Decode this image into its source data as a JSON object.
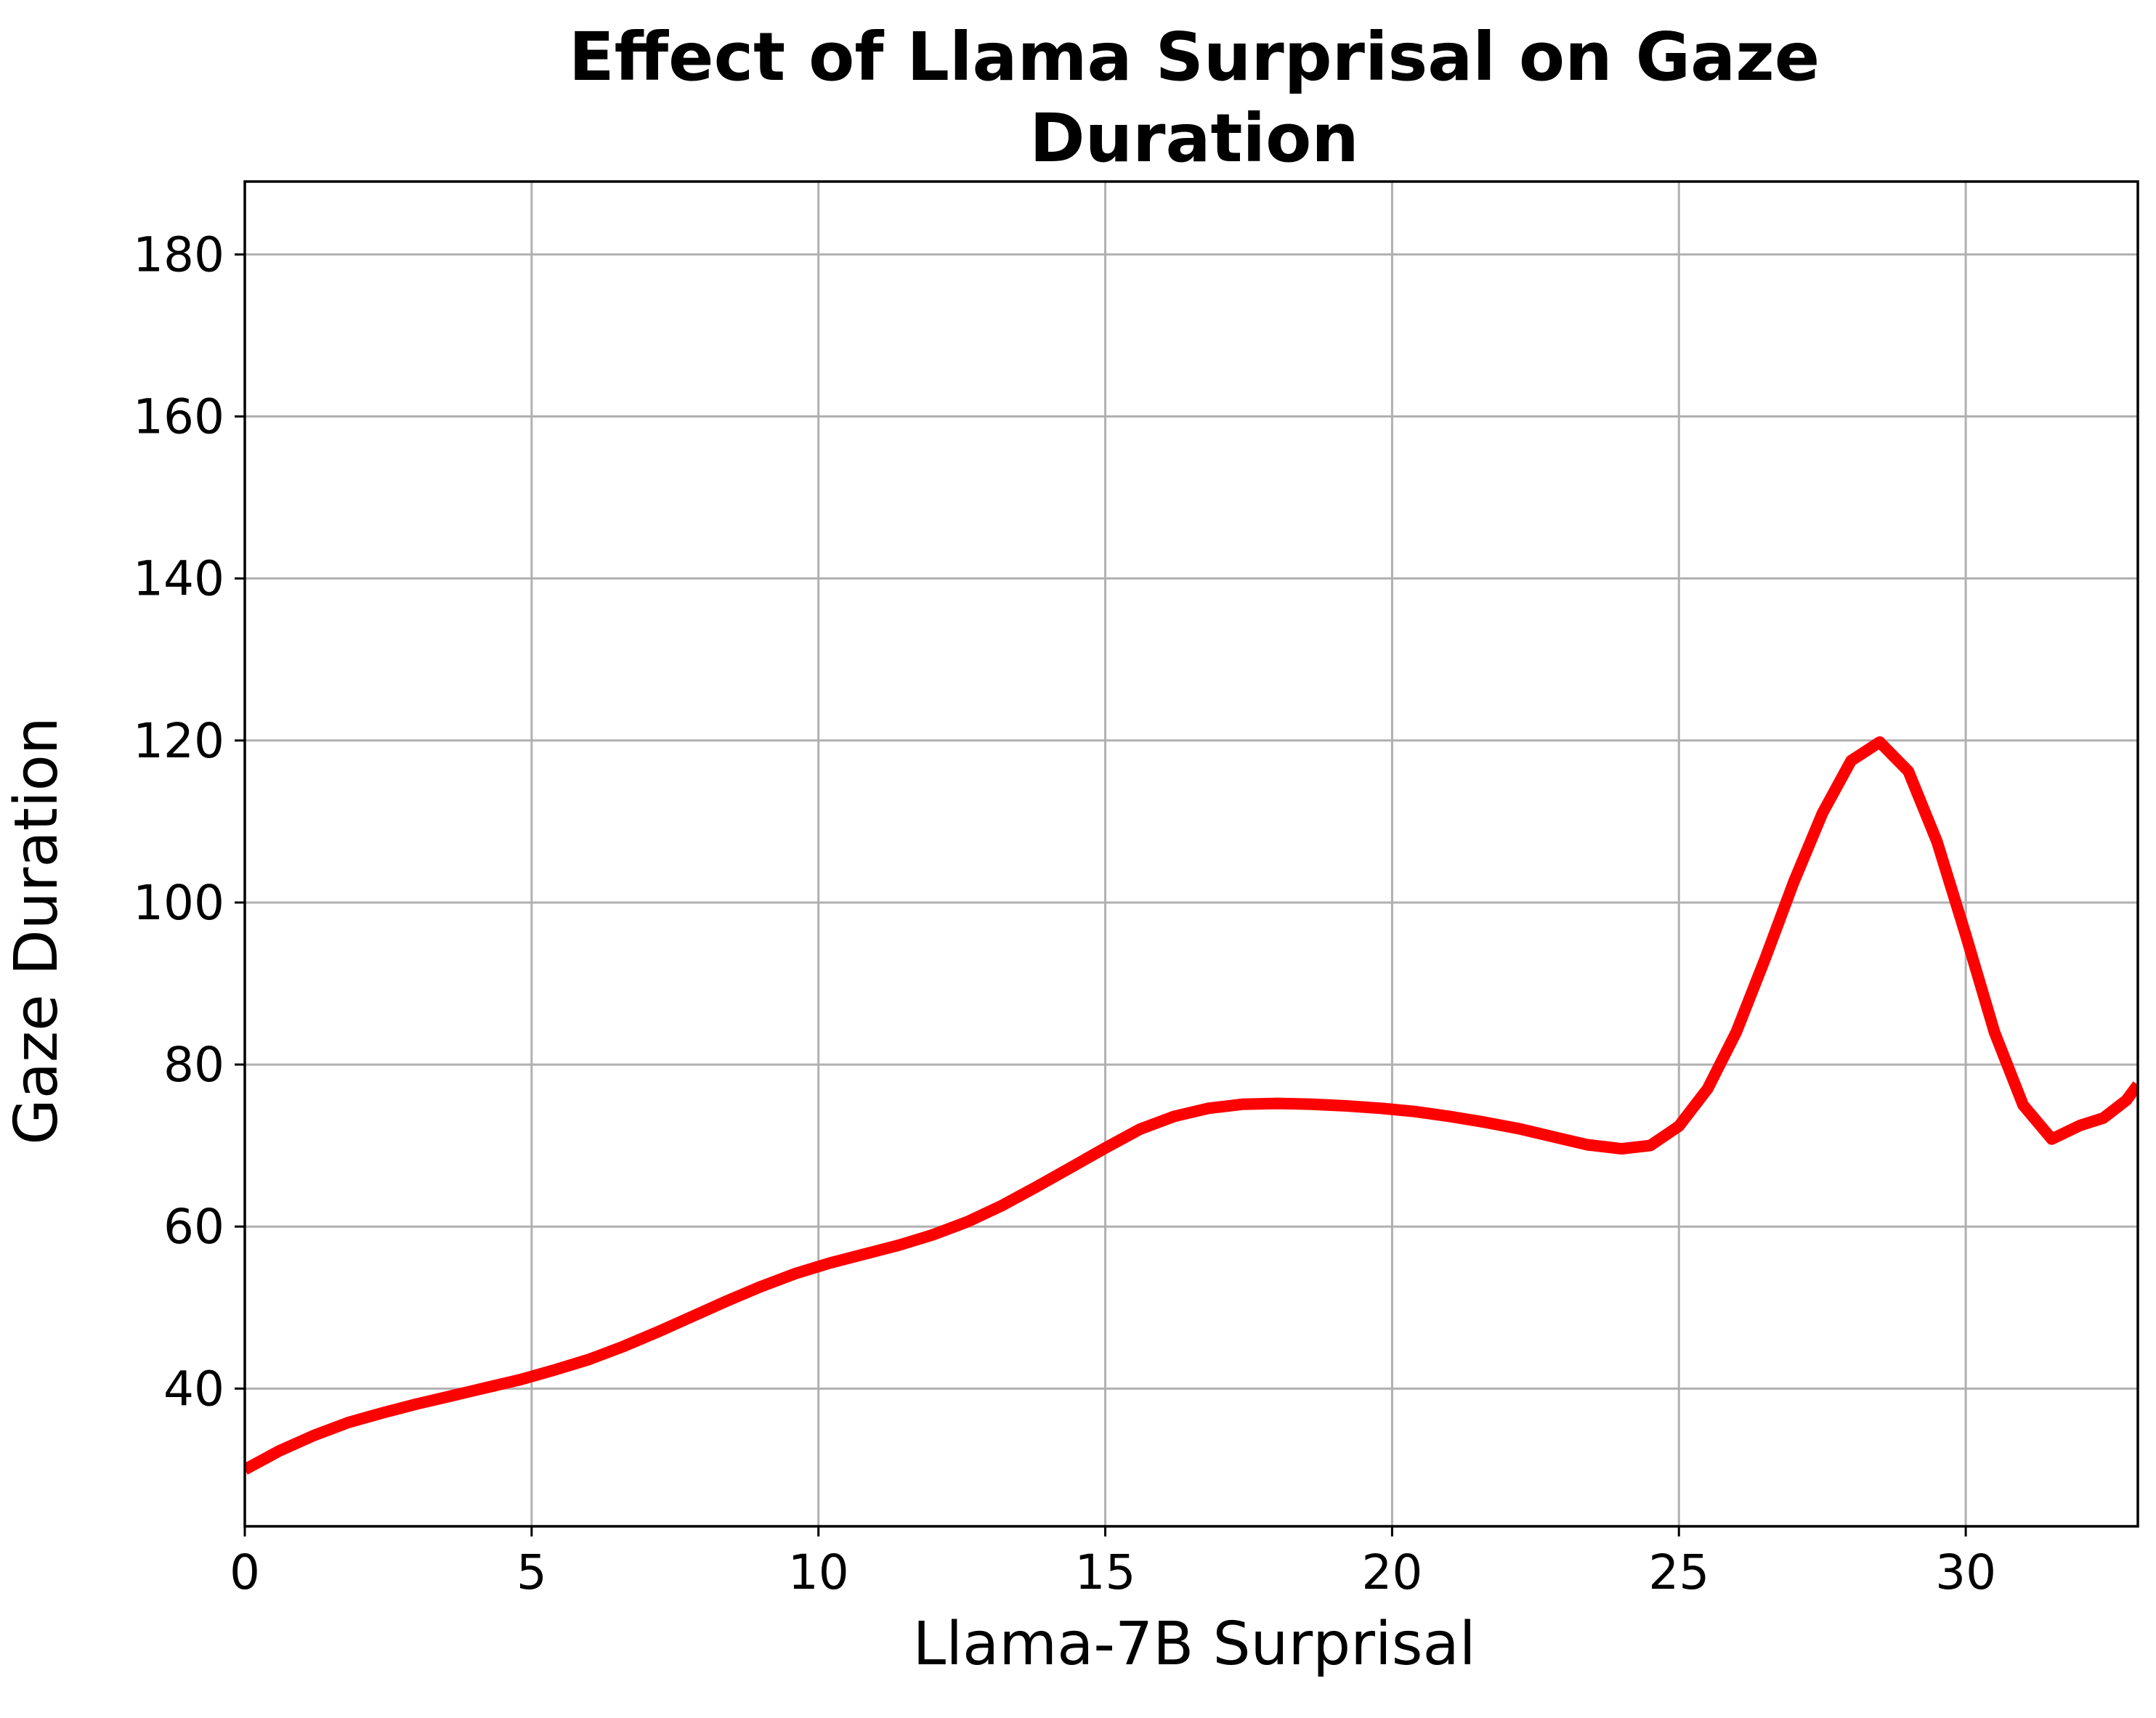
{
  "chart_data": {
    "type": "line",
    "title": "Effect of Llama Surprisal on Gaze Duration",
    "title_lines": [
      "Effect of Llama Surprisal on Gaze",
      "Duration"
    ],
    "xlabel": "Llama-7B Surprisal",
    "ylabel": "Gaze Duration",
    "xlim": [
      0,
      33
    ],
    "ylim": [
      23,
      189
    ],
    "xticks": [
      0,
      5,
      10,
      15,
      20,
      25,
      30
    ],
    "yticks": [
      40,
      60,
      80,
      100,
      120,
      140,
      160,
      180
    ],
    "grid": true,
    "line_color": "#ff0000",
    "series": [
      {
        "x": [
          0,
          0.6,
          1.2,
          1.8,
          2.4,
          3.0,
          3.6,
          4.2,
          4.8,
          5.4,
          6.0,
          6.6,
          7.2,
          7.8,
          8.4,
          9.0,
          9.6,
          10.2,
          10.8,
          11.4,
          12.0,
          12.6,
          13.2,
          13.8,
          14.4,
          15.0,
          15.6,
          16.2,
          16.8,
          17.4,
          18.0,
          18.6,
          19.2,
          19.8,
          20.4,
          21.0,
          21.6,
          22.2,
          22.8,
          23.4,
          24.0,
          24.5,
          25.0,
          25.5,
          26.0,
          26.5,
          27.0,
          27.5,
          28.0,
          28.5,
          29.0,
          29.5,
          30.0,
          30.5,
          31.0,
          31.5,
          32.0,
          32.4,
          32.8,
          33.0
        ],
        "y": [
          30.0,
          32.3,
          34.2,
          35.8,
          37.0,
          38.1,
          39.1,
          40.1,
          41.1,
          42.3,
          43.6,
          45.2,
          47.0,
          48.9,
          50.8,
          52.6,
          54.2,
          55.5,
          56.6,
          57.7,
          59.0,
          60.6,
          62.6,
          64.9,
          67.3,
          69.7,
          72.0,
          73.6,
          74.6,
          75.1,
          75.2,
          75.1,
          74.9,
          74.6,
          74.2,
          73.6,
          72.9,
          72.1,
          71.1,
          70.1,
          69.6,
          70.0,
          72.4,
          77.0,
          84.0,
          93.0,
          102.5,
          111.0,
          117.5,
          119.8,
          116.2,
          107.5,
          96.0,
          84.0,
          75.0,
          70.8,
          72.5,
          73.4,
          75.6,
          77.5
        ]
      }
    ]
  }
}
